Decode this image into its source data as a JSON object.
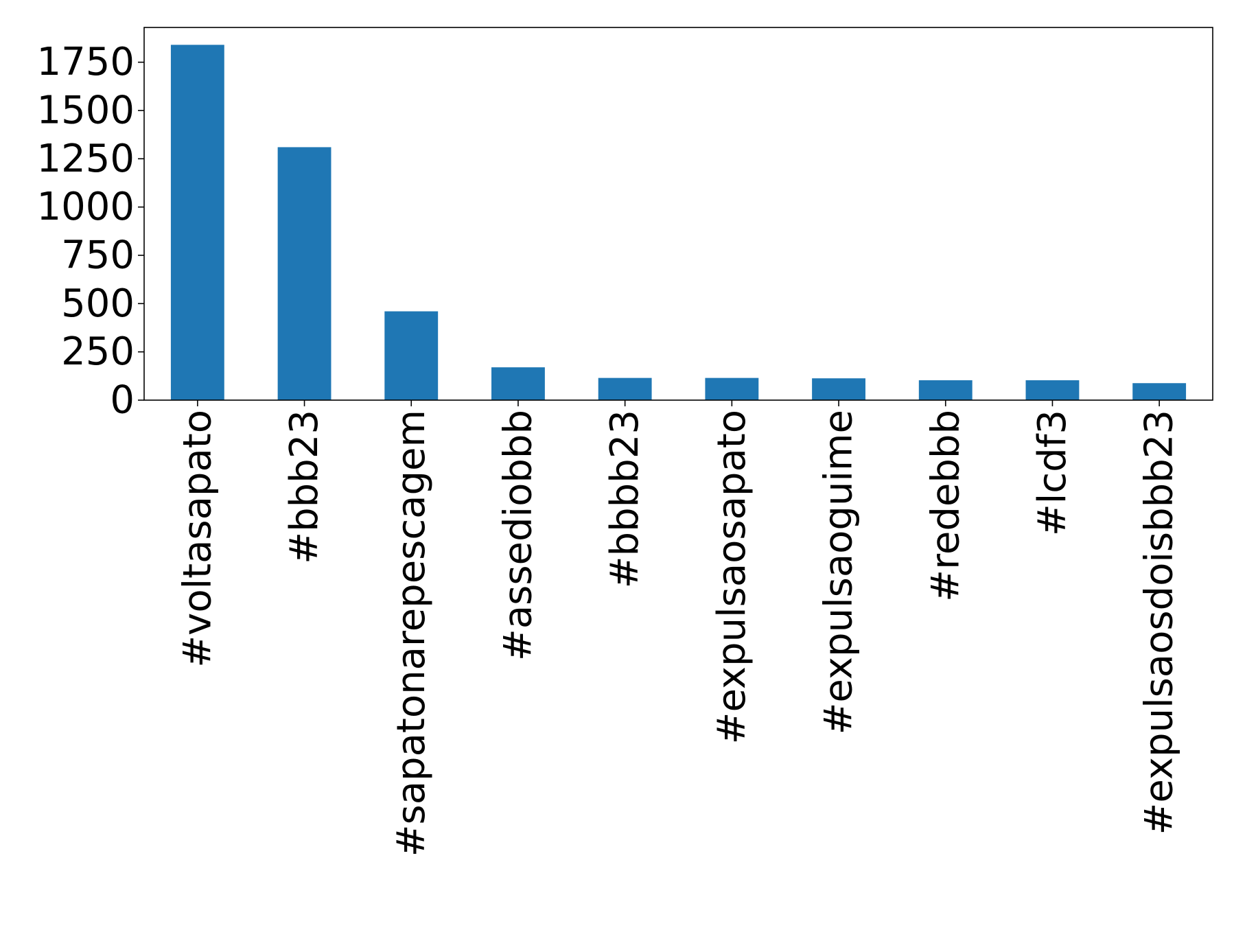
{
  "chart_data": {
    "type": "bar",
    "title": "",
    "xlabel": "",
    "ylabel": "",
    "categories": [
      "#voltasapato",
      "#bbb23",
      "#sapatonarepescagem",
      "#assediobbb",
      "#bbbb23",
      "#expulsaosapato",
      "#expulsaoguime",
      "#redebbb",
      "#lcdf3",
      "#expulsaosdoisbbb23"
    ],
    "values": [
      1840,
      1310,
      460,
      170,
      115,
      115,
      113,
      103,
      103,
      88
    ],
    "ylim": [
      0,
      1930
    ],
    "yticks": [
      0,
      250,
      500,
      750,
      1000,
      1250,
      1500,
      1750
    ],
    "ytick_labels": [
      "0",
      "250",
      "500",
      "750",
      "1000",
      "1250",
      "1500",
      "1750"
    ],
    "grid": false,
    "bar_color": "#1f77b4"
  }
}
